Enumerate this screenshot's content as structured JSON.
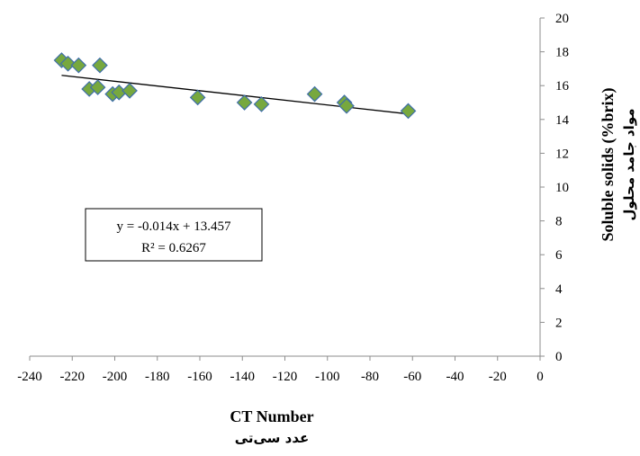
{
  "chart_data": {
    "type": "scatter",
    "xlabel": "CT Number",
    "xlabel_sub": "عدد سی‌تی",
    "ylabel": "Soluble solids (%brix)",
    "ylabel_sub": "مواد جامد محلول",
    "xlim": [
      -240,
      0
    ],
    "ylim": [
      0,
      20
    ],
    "x_ticks": [
      -240,
      -220,
      -200,
      -180,
      -160,
      -140,
      -120,
      -100,
      -80,
      -60,
      -40,
      -20,
      0
    ],
    "y_ticks": [
      0,
      2,
      4,
      6,
      8,
      10,
      12,
      14,
      16,
      18,
      20
    ],
    "y_axis_position": "right",
    "grid": false,
    "legend": "none",
    "marker": {
      "shape": "diamond",
      "fill": "#77A83E",
      "stroke": "#3F6FA8"
    },
    "series": [
      {
        "points": [
          {
            "x": -225,
            "y": 17.5
          },
          {
            "x": -222,
            "y": 17.3
          },
          {
            "x": -217,
            "y": 17.2
          },
          {
            "x": -212,
            "y": 15.8
          },
          {
            "x": -208,
            "y": 15.9
          },
          {
            "x": -207,
            "y": 17.2
          },
          {
            "x": -201,
            "y": 15.5
          },
          {
            "x": -198,
            "y": 15.6
          },
          {
            "x": -193,
            "y": 15.7
          },
          {
            "x": -161,
            "y": 15.3
          },
          {
            "x": -139,
            "y": 15.0
          },
          {
            "x": -131,
            "y": 14.9
          },
          {
            "x": -106,
            "y": 15.5
          },
          {
            "x": -92,
            "y": 15.0
          },
          {
            "x": -91,
            "y": 14.8
          },
          {
            "x": -62,
            "y": 14.5
          }
        ]
      }
    ],
    "trendline": {
      "type": "linear",
      "slope": -0.014,
      "intercept": 13.457,
      "x_range": [
        -225,
        -62
      ],
      "color": "#000000",
      "equation": "y = -0.014x + 13.457",
      "r_squared": "R² = 0.6267"
    }
  }
}
